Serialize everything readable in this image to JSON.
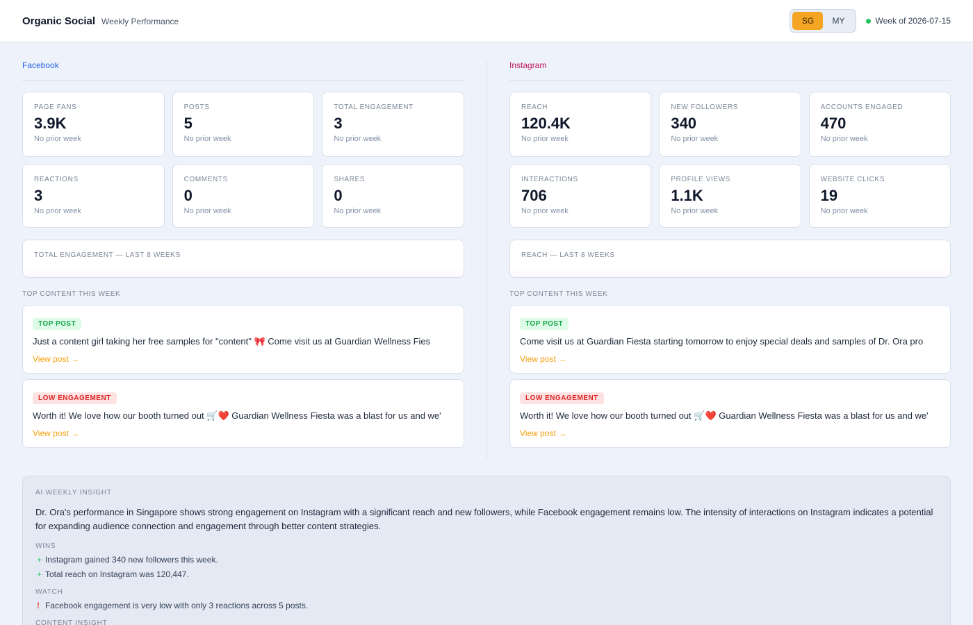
{
  "header": {
    "brand": "Organic Social",
    "subtitle": "Weekly Performance",
    "region_toggle": {
      "options": [
        "SG",
        "MY"
      ],
      "selected": "SG"
    },
    "week_label": "Week of 2026-07-15",
    "status_color": "#22c55e"
  },
  "colors": {
    "accent": "#f5a524",
    "facebook": "#2563eb",
    "instagram": "#be185d"
  },
  "facebook": {
    "title": "Facebook",
    "kpis": [
      {
        "label": "PAGE FANS",
        "value": "3.9K",
        "note": "No prior week"
      },
      {
        "label": "POSTS",
        "value": "5",
        "note": "No prior week"
      },
      {
        "label": "TOTAL ENGAGEMENT",
        "value": "3",
        "note": "No prior week"
      },
      {
        "label": "REACTIONS",
        "value": "3",
        "note": "No prior week"
      },
      {
        "label": "COMMENTS",
        "value": "0",
        "note": "No prior week"
      },
      {
        "label": "SHARES",
        "value": "0",
        "note": "No prior week"
      }
    ],
    "trend_label": "TOTAL ENGAGEMENT — LAST 8 WEEKS",
    "top_content_label": "TOP CONTENT THIS WEEK",
    "posts": [
      {
        "tag": "TOP POST",
        "text": "Just a content girl taking her free samples for \"content\" 🎀 Come visit us at Guardian Wellness Fies",
        "link": "View post →"
      },
      {
        "tag": "LOW ENGAGEMENT",
        "text": "Worth it! We love how our booth turned out 🛒❤️ Guardian Wellness Fiesta was a blast for us and we'",
        "link": "View post →"
      }
    ]
  },
  "instagram": {
    "title": "Instagram",
    "kpis": [
      {
        "label": "REACH",
        "value": "120.4K",
        "note": "No prior week"
      },
      {
        "label": "NEW FOLLOWERS",
        "value": "340",
        "note": "No prior week"
      },
      {
        "label": "ACCOUNTS ENGAGED",
        "value": "470",
        "note": "No prior week"
      },
      {
        "label": "INTERACTIONS",
        "value": "706",
        "note": "No prior week"
      },
      {
        "label": "PROFILE VIEWS",
        "value": "1.1K",
        "note": "No prior week"
      },
      {
        "label": "WEBSITE CLICKS",
        "value": "19",
        "note": "No prior week"
      }
    ],
    "trend_label": "REACH — LAST 8 WEEKS",
    "top_content_label": "TOP CONTENT THIS WEEK",
    "posts": [
      {
        "tag": "TOP POST",
        "text": "Come visit us at Guardian Fiesta starting tomorrow to enjoy special deals and samples of Dr. Ora pro",
        "link": "View post →"
      },
      {
        "tag": "LOW ENGAGEMENT",
        "text": "Worth it! We love how our booth turned out 🛒❤️ Guardian Wellness Fiesta was a blast for us and we'",
        "link": "View post →"
      }
    ]
  },
  "insight": {
    "label": "AI WEEKLY INSIGHT",
    "summary": "Dr. Ora's performance in Singapore shows strong engagement on Instagram with a significant reach and new followers, while Facebook engagement remains low. The intensity of interactions on Instagram indicates a potential for expanding audience connection and engagement through better content strategies.",
    "wins_label": "WINS",
    "wins": [
      "Instagram gained 340 new followers this week.",
      "Total reach on Instagram was 120,447."
    ],
    "watch_label": "WATCH",
    "watch": [
      "Facebook engagement is very low with only 3 reactions across 5 posts."
    ],
    "content_label": "CONTENT INSIGHT"
  }
}
